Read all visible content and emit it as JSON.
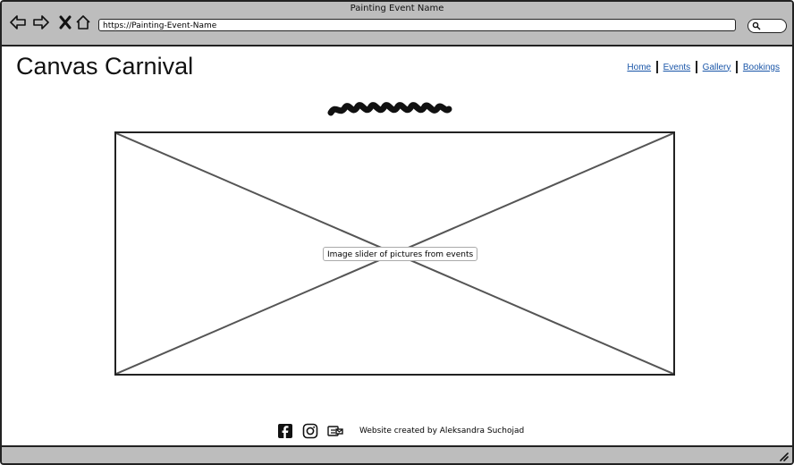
{
  "window": {
    "title": "Painting Event Name"
  },
  "browser": {
    "url": "https://Painting-Event-Name",
    "icons": [
      "back-arrow-icon",
      "forward-arrow-icon",
      "close-x-icon",
      "home-icon",
      "search-icon"
    ]
  },
  "header": {
    "site_title": "Canvas Carnival",
    "nav": [
      {
        "label": "Home"
      },
      {
        "label": "Events"
      },
      {
        "label": "Gallery"
      },
      {
        "label": "Bookings"
      }
    ]
  },
  "main": {
    "slider_placeholder_label": "Image slider of pictures from events"
  },
  "footer": {
    "social_icons": [
      "facebook-icon",
      "instagram-icon",
      "mail-icon"
    ],
    "credit": "Website created by Aleksandra Suchojad"
  },
  "colors": {
    "chrome": "#bdbdbd",
    "link": "#1a56a8",
    "border": "#222222"
  }
}
